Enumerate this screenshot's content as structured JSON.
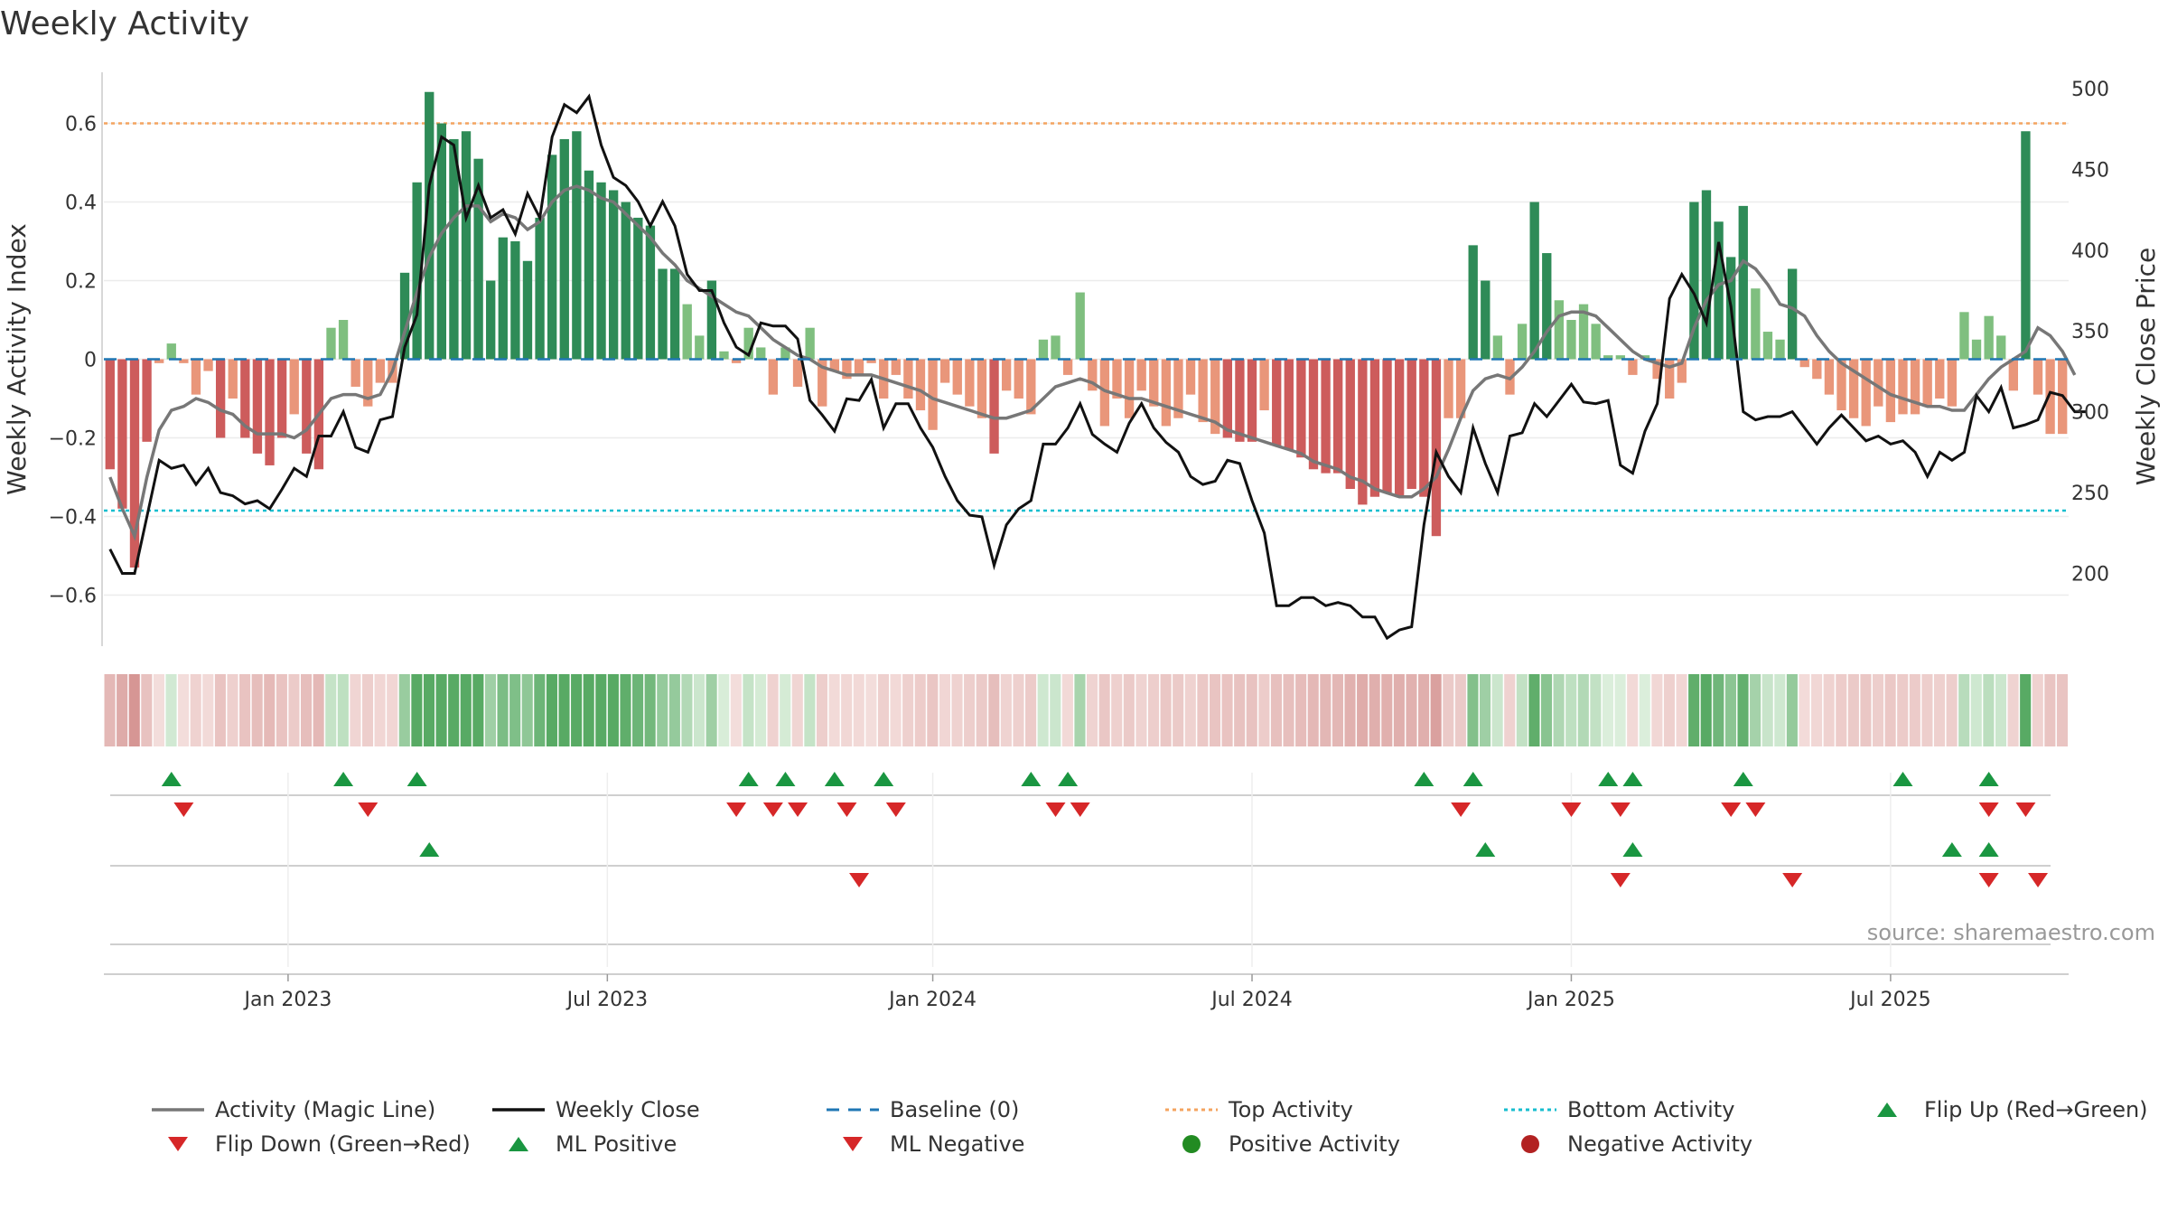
{
  "title": "Weekly Activity",
  "source": "source: sharemaestro.com",
  "colors": {
    "strong_green": "#2e8b57",
    "light_green": "#7fbf7f",
    "strong_red": "#cd5c5c",
    "light_red": "#e9967a",
    "magic_line": "#777777",
    "close_line": "#111111",
    "baseline": "#1f77b4",
    "top": "#f4a460",
    "bottom": "#17becf",
    "marker_green": "#1a9641",
    "marker_red": "#d62728"
  },
  "chart_data": {
    "type": "bar+line",
    "title": "Weekly Activity",
    "ylabel": "Weekly Activity Index",
    "y2label": "Weekly Close Price",
    "ylim": [
      -0.73,
      0.73
    ],
    "y2lim": [
      155,
      510
    ],
    "yticks": [
      0.6,
      0.4,
      0.2,
      0,
      -0.2,
      -0.4,
      -0.6
    ],
    "ytick_labels": [
      "0.6",
      "0.4",
      "0.2",
      "0",
      "−0.2",
      "−0.4",
      "−0.6"
    ],
    "y2ticks": [
      500,
      450,
      400,
      350,
      300,
      250,
      200
    ],
    "x_labels": [
      "Jan 2023",
      "Jul 2023",
      "Jan 2024",
      "Jul 2024",
      "Jan 2025",
      "Jul 2025"
    ],
    "x_label_weeks": [
      15,
      41,
      67.5,
      93.5,
      119.5,
      145.5
    ],
    "top_activity": 0.6,
    "bottom_activity": -0.385,
    "activity_values": [
      -0.28,
      -0.38,
      -0.53,
      -0.21,
      -0.01,
      0.04,
      -0.01,
      -0.09,
      -0.03,
      -0.2,
      -0.1,
      -0.2,
      -0.24,
      -0.27,
      -0.2,
      -0.14,
      -0.24,
      -0.28,
      0.08,
      0.1,
      -0.07,
      -0.12,
      -0.06,
      -0.06,
      0.22,
      0.45,
      0.68,
      0.6,
      0.56,
      0.58,
      0.51,
      0.2,
      0.31,
      0.3,
      0.25,
      0.36,
      0.52,
      0.56,
      0.58,
      0.48,
      0.45,
      0.43,
      0.4,
      0.36,
      0.34,
      0.23,
      0.23,
      0.14,
      0.06,
      0.2,
      0.02,
      -0.01,
      0.08,
      0.03,
      -0.09,
      0.03,
      -0.07,
      0.08,
      -0.12,
      -0.03,
      -0.05,
      -0.04,
      -0.01,
      -0.1,
      -0.04,
      -0.1,
      -0.13,
      -0.18,
      -0.06,
      -0.09,
      -0.12,
      -0.15,
      -0.24,
      -0.08,
      -0.1,
      -0.14,
      0.05,
      0.06,
      -0.04,
      0.17,
      -0.08,
      -0.17,
      -0.1,
      -0.15,
      -0.08,
      -0.12,
      -0.17,
      -0.15,
      -0.09,
      -0.16,
      -0.19,
      -0.2,
      -0.21,
      -0.21,
      -0.13,
      -0.22,
      -0.23,
      -0.25,
      -0.28,
      -0.29,
      -0.29,
      -0.33,
      -0.37,
      -0.35,
      -0.34,
      -0.35,
      -0.33,
      -0.35,
      -0.45,
      -0.15,
      -0.15,
      0.29,
      0.2,
      0.06,
      -0.09,
      0.09,
      0.4,
      0.27,
      0.15,
      0.1,
      0.14,
      0.09,
      0.01,
      0.01,
      -0.04,
      0.01,
      -0.05,
      -0.1,
      -0.06,
      0.4,
      0.43,
      0.35,
      0.26,
      0.39,
      0.18,
      0.07,
      0.05,
      0.23,
      -0.02,
      -0.05,
      -0.09,
      -0.13,
      -0.15,
      -0.17,
      -0.12,
      -0.16,
      -0.14,
      -0.14,
      -0.12,
      -0.1,
      -0.12,
      0.12,
      0.05,
      0.11,
      0.06,
      -0.08,
      0.58,
      -0.09,
      -0.19,
      -0.19
    ],
    "magic_line": [
      -0.3,
      -0.38,
      -0.45,
      -0.3,
      -0.18,
      -0.13,
      -0.12,
      -0.1,
      -0.11,
      -0.13,
      -0.14,
      -0.17,
      -0.19,
      -0.19,
      -0.19,
      -0.2,
      -0.18,
      -0.14,
      -0.1,
      -0.09,
      -0.09,
      -0.1,
      -0.09,
      -0.03,
      0.07,
      0.17,
      0.26,
      0.32,
      0.36,
      0.39,
      0.39,
      0.35,
      0.37,
      0.36,
      0.33,
      0.35,
      0.4,
      0.43,
      0.44,
      0.43,
      0.41,
      0.4,
      0.37,
      0.34,
      0.31,
      0.27,
      0.24,
      0.2,
      0.18,
      0.16,
      0.14,
      0.12,
      0.11,
      0.08,
      0.05,
      0.03,
      0.01,
      0.0,
      -0.02,
      -0.03,
      -0.04,
      -0.04,
      -0.04,
      -0.05,
      -0.06,
      -0.07,
      -0.08,
      -0.1,
      -0.11,
      -0.12,
      -0.13,
      -0.14,
      -0.15,
      -0.15,
      -0.14,
      -0.13,
      -0.1,
      -0.07,
      -0.06,
      -0.05,
      -0.06,
      -0.08,
      -0.09,
      -0.1,
      -0.1,
      -0.11,
      -0.12,
      -0.13,
      -0.14,
      -0.15,
      -0.16,
      -0.18,
      -0.19,
      -0.2,
      -0.21,
      -0.22,
      -0.23,
      -0.24,
      -0.26,
      -0.27,
      -0.28,
      -0.3,
      -0.31,
      -0.33,
      -0.34,
      -0.35,
      -0.35,
      -0.33,
      -0.3,
      -0.23,
      -0.15,
      -0.08,
      -0.05,
      -0.04,
      -0.05,
      -0.02,
      0.02,
      0.07,
      0.11,
      0.12,
      0.12,
      0.11,
      0.08,
      0.05,
      0.02,
      0.0,
      -0.01,
      -0.02,
      -0.01,
      0.08,
      0.15,
      0.19,
      0.2,
      0.25,
      0.23,
      0.19,
      0.14,
      0.13,
      0.11,
      0.06,
      0.02,
      -0.01,
      -0.03,
      -0.05,
      -0.07,
      -0.09,
      -0.1,
      -0.11,
      -0.12,
      -0.12,
      -0.13,
      -0.13,
      -0.09,
      -0.05,
      -0.02,
      0.0,
      0.02,
      0.08,
      0.06,
      0.02,
      -0.04
    ],
    "weekly_close": [
      215,
      200,
      200,
      235,
      270,
      265,
      267,
      255,
      265,
      250,
      248,
      243,
      245,
      240,
      252,
      265,
      260,
      285,
      285,
      300,
      278,
      275,
      295,
      297,
      340,
      360,
      440,
      470,
      465,
      420,
      440,
      420,
      425,
      410,
      435,
      420,
      470,
      490,
      485,
      495,
      465,
      445,
      440,
      430,
      415,
      430,
      415,
      385,
      375,
      375,
      355,
      340,
      335,
      355,
      353,
      353,
      345,
      307,
      298,
      288,
      308,
      307,
      320,
      290,
      305,
      305,
      290,
      278,
      260,
      245,
      236,
      235,
      205,
      230,
      240,
      245,
      280,
      280,
      290,
      305,
      286,
      280,
      275,
      293,
      305,
      290,
      281,
      275,
      260,
      255,
      257,
      270,
      268,
      245,
      225,
      180,
      180,
      185,
      185,
      180,
      182,
      180,
      173,
      173,
      160,
      165,
      167,
      230,
      275,
      260,
      250,
      290,
      268,
      250,
      285,
      287,
      305,
      297,
      307,
      317,
      306,
      305,
      307,
      267,
      262,
      288,
      305,
      370,
      385,
      373,
      355,
      405,
      365,
      300,
      295,
      297,
      297,
      300,
      290,
      280,
      290,
      298,
      290,
      282,
      285,
      280,
      282,
      275,
      260,
      275,
      270,
      275,
      310,
      300,
      315,
      290,
      292,
      295,
      312,
      310,
      300,
      300
    ],
    "flip_up_weeks": [
      5,
      19,
      25,
      52,
      55,
      59,
      63,
      75,
      78,
      107,
      111,
      122,
      124,
      133,
      146,
      153
    ],
    "flip_down_weeks": [
      6,
      21,
      51,
      54,
      56,
      60,
      64,
      77,
      79,
      110,
      119,
      123,
      132,
      134,
      153,
      156
    ],
    "ml_positive_weeks": [
      26,
      112,
      124,
      150,
      153
    ],
    "ml_negative_weeks": [
      61,
      123,
      137,
      153,
      157
    ]
  },
  "legend": [
    {
      "label": "Activity (Magic Line)",
      "kind": "line",
      "color": "#777777"
    },
    {
      "label": "Weekly Close",
      "kind": "line",
      "color": "#111111"
    },
    {
      "label": "Baseline (0)",
      "kind": "dashed",
      "color": "#1f77b4"
    },
    {
      "label": "Top Activity",
      "kind": "dotted",
      "color": "#f4a460"
    },
    {
      "label": "Bottom Activity",
      "kind": "dotted",
      "color": "#17becf"
    },
    {
      "label": "Flip Up (Red→Green)",
      "kind": "up",
      "color": "#1a9641"
    },
    {
      "label": "Flip Down (Green→Red)",
      "kind": "down",
      "color": "#d62728"
    },
    {
      "label": "ML Positive",
      "kind": "up",
      "color": "#1a9641"
    },
    {
      "label": "ML Negative",
      "kind": "down",
      "color": "#d62728"
    },
    {
      "label": "Positive Activity",
      "kind": "dot",
      "color": "#228b22"
    },
    {
      "label": "Negative Activity",
      "kind": "dot",
      "color": "#b22222"
    }
  ]
}
